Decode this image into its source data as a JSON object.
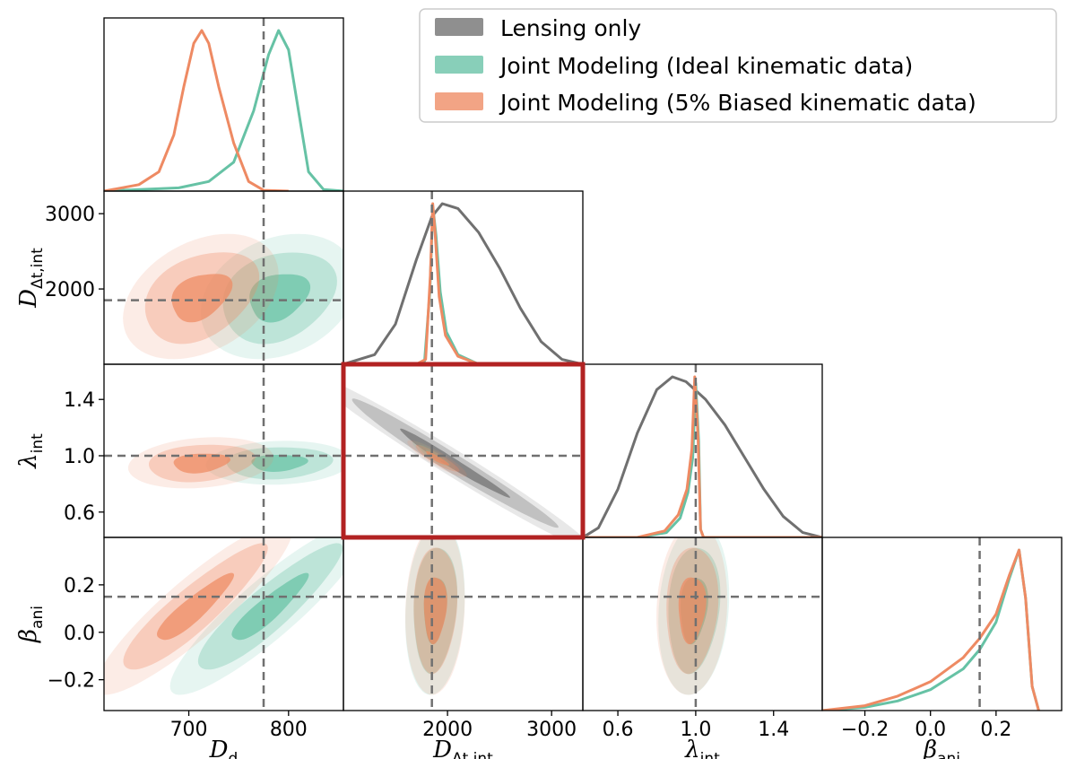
{
  "legend": [
    {
      "label": "Lensing only",
      "color": "#707070"
    },
    {
      "label": "Joint Modeling (Ideal kinematic data)",
      "color": "#66c2a5"
    },
    {
      "label": "Joint Modeling (5% Biased kinematic data)",
      "color": "#ee8a63"
    }
  ],
  "colors": {
    "lensing": "#707070",
    "ideal": "#66c2a5",
    "biased": "#ee8a63",
    "highlight": "#b22222",
    "truth": "#707070"
  },
  "chart_data": {
    "type": "corner",
    "parameters": [
      {
        "id": "Dd",
        "label": "D",
        "sub": "d",
        "range": [
          615,
          855
        ],
        "ticks": [
          700,
          800
        ],
        "truth": 775
      },
      {
        "id": "Ddt",
        "label": "D",
        "sub": "Δt,int",
        "range": [
          1000,
          3300
        ],
        "ticks": [
          2000,
          3000
        ],
        "truth": 1850
      },
      {
        "id": "lam",
        "label": "λ",
        "sub": "int",
        "range": [
          0.42,
          1.65
        ],
        "ticks": [
          0.6,
          1.0,
          1.4
        ],
        "truth": 1.0
      },
      {
        "id": "beta",
        "label": "β",
        "sub": "ani",
        "range": [
          -0.33,
          0.4
        ],
        "ticks": [
          -0.2,
          0.0,
          0.2
        ],
        "truth": 0.15
      }
    ],
    "tick_labels": {
      "Dd": [
        "700",
        "800"
      ],
      "Ddt": [
        "2000",
        "3000"
      ],
      "lam": [
        "0.6",
        "1.0",
        "1.4"
      ],
      "beta": [
        "−0.2",
        "0.0",
        "0.2"
      ]
    },
    "marginals": {
      "Dd": {
        "ideal": {
          "x": [
            615,
            690,
            720,
            745,
            765,
            780,
            790,
            800,
            810,
            820,
            835,
            855
          ],
          "y": [
            0.0,
            0.02,
            0.06,
            0.18,
            0.5,
            0.85,
            1.0,
            0.88,
            0.5,
            0.12,
            0.01,
            0.0
          ]
        },
        "biased": {
          "x": [
            615,
            650,
            670,
            685,
            695,
            705,
            713,
            720,
            730,
            745,
            760,
            775,
            800
          ],
          "y": [
            0.0,
            0.04,
            0.12,
            0.35,
            0.65,
            0.92,
            1.0,
            0.92,
            0.65,
            0.3,
            0.06,
            0.005,
            0.0
          ]
        }
      },
      "Ddt": {
        "lensing": {
          "x": [
            1000,
            1300,
            1500,
            1700,
            1850,
            1950,
            2100,
            2300,
            2500,
            2700,
            2900,
            3100,
            3300
          ],
          "y": [
            0.0,
            0.06,
            0.25,
            0.65,
            0.92,
            1.0,
            0.97,
            0.82,
            0.6,
            0.35,
            0.14,
            0.03,
            0.0
          ]
        },
        "ideal": {
          "x": [
            1000,
            1700,
            1780,
            1830,
            1860,
            1890,
            1930,
            1990,
            2100,
            2300,
            3300
          ],
          "y": [
            0.0,
            0.0,
            0.02,
            0.45,
            0.98,
            0.8,
            0.45,
            0.2,
            0.06,
            0.0,
            0.0
          ]
        },
        "biased": {
          "x": [
            1000,
            1700,
            1790,
            1835,
            1858,
            1880,
            1920,
            1980,
            2100,
            2300,
            3300
          ],
          "y": [
            0.0,
            0.0,
            0.03,
            0.55,
            1.0,
            0.82,
            0.42,
            0.18,
            0.05,
            0.0,
            0.0
          ]
        }
      },
      "lam": {
        "lensing": {
          "x": [
            0.42,
            0.5,
            0.6,
            0.7,
            0.8,
            0.88,
            0.95,
            1.05,
            1.15,
            1.25,
            1.35,
            1.45,
            1.55,
            1.65
          ],
          "y": [
            0.0,
            0.06,
            0.3,
            0.65,
            0.92,
            1.0,
            0.97,
            0.86,
            0.7,
            0.5,
            0.3,
            0.13,
            0.03,
            0.0
          ]
        },
        "ideal": {
          "x": [
            0.42,
            0.7,
            0.85,
            0.92,
            0.96,
            0.985,
            1.0,
            1.015,
            1.025,
            1.04,
            1.65
          ],
          "y": [
            0.0,
            0.0,
            0.03,
            0.12,
            0.28,
            0.5,
            0.96,
            0.6,
            0.05,
            0.0,
            0.0
          ]
        },
        "biased": {
          "x": [
            0.42,
            0.7,
            0.84,
            0.91,
            0.955,
            0.98,
            0.995,
            1.012,
            1.025,
            1.04,
            1.65
          ],
          "y": [
            0.0,
            0.0,
            0.04,
            0.14,
            0.3,
            0.55,
            1.0,
            0.62,
            0.05,
            0.0,
            0.0
          ]
        }
      },
      "beta": {
        "ideal": {
          "x": [
            -0.33,
            -0.2,
            -0.1,
            0.0,
            0.1,
            0.15,
            0.2,
            0.24,
            0.27,
            0.29,
            0.31,
            0.33
          ],
          "y": [
            0.0,
            0.02,
            0.06,
            0.13,
            0.26,
            0.38,
            0.55,
            0.82,
            1.0,
            0.7,
            0.15,
            0.0
          ]
        },
        "biased": {
          "x": [
            -0.33,
            -0.2,
            -0.1,
            0.0,
            0.1,
            0.15,
            0.2,
            0.24,
            0.27,
            0.29,
            0.31,
            0.33
          ],
          "y": [
            0.0,
            0.03,
            0.09,
            0.18,
            0.33,
            0.45,
            0.6,
            0.84,
            1.0,
            0.7,
            0.15,
            0.0
          ]
        }
      }
    },
    "joint": [
      {
        "x": "Dd",
        "y": "Ddt",
        "series": "ideal",
        "cx": 790,
        "cy": 1900,
        "sx": 30,
        "sy": 320,
        "rho": 0.25
      },
      {
        "x": "Dd",
        "y": "Ddt",
        "series": "biased",
        "cx": 712,
        "cy": 1900,
        "sx": 30,
        "sy": 320,
        "rho": 0.35
      },
      {
        "x": "Dd",
        "y": "lam",
        "series": "ideal",
        "cx": 790,
        "cy": 0.95,
        "sx": 28,
        "sy": 0.06,
        "rho": 0.1
      },
      {
        "x": "Dd",
        "y": "lam",
        "series": "biased",
        "cx": 712,
        "cy": 0.95,
        "sx": 28,
        "sy": 0.07,
        "rho": 0.2
      },
      {
        "x": "Dd",
        "y": "beta",
        "series": "ideal",
        "cx": 780,
        "cy": 0.1,
        "sx": 38,
        "sy": 0.14,
        "rho": 0.9
      },
      {
        "x": "Dd",
        "y": "beta",
        "series": "biased",
        "cx": 705,
        "cy": 0.1,
        "sx": 38,
        "sy": 0.14,
        "rho": 0.9
      },
      {
        "x": "Ddt",
        "y": "lam",
        "series": "lensing",
        "cx": 2050,
        "cy": 0.95,
        "sx": 520,
        "sy": 0.24,
        "rho": -0.985
      },
      {
        "x": "Ddt",
        "y": "lam",
        "series": "ideal",
        "cx": 1870,
        "cy": 1.0,
        "sx": 80,
        "sy": 0.04,
        "rho": -0.9
      },
      {
        "x": "Ddt",
        "y": "lam",
        "series": "biased",
        "cx": 1900,
        "cy": 0.98,
        "sx": 110,
        "sy": 0.05,
        "rho": -0.9
      },
      {
        "x": "Ddt",
        "y": "beta",
        "series": "ideal",
        "cx": 1880,
        "cy": 0.1,
        "sx": 110,
        "sy": 0.14,
        "rho": 0.15
      },
      {
        "x": "Ddt",
        "y": "beta",
        "series": "biased",
        "cx": 1880,
        "cy": 0.1,
        "sx": 110,
        "sy": 0.14,
        "rho": 0.1
      },
      {
        "x": "lam",
        "y": "beta",
        "series": "ideal",
        "cx": 0.99,
        "cy": 0.1,
        "sx": 0.07,
        "sy": 0.14,
        "rho": 0.15
      },
      {
        "x": "lam",
        "y": "beta",
        "series": "biased",
        "cx": 0.98,
        "cy": 0.1,
        "sx": 0.07,
        "sy": 0.14,
        "rho": 0.1
      }
    ],
    "highlighted_panel": {
      "x": "Ddt",
      "y": "lam"
    }
  }
}
